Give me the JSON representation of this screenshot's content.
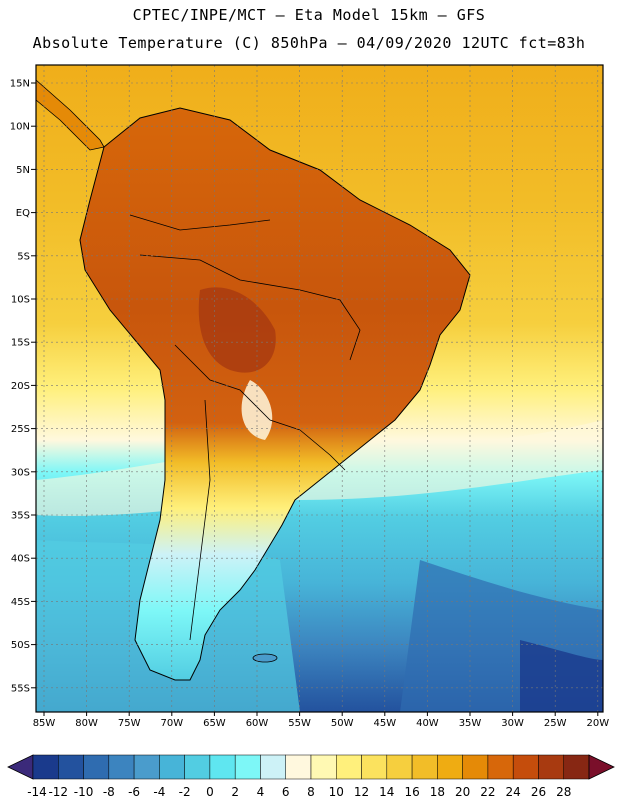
{
  "header": {
    "line1": "CPTEC/INPE/MCT –  Eta Model 15km – GFS",
    "line2": "Absolute Temperature (C) 850hPa – 04/09/2020 12UTC fct=83h"
  },
  "axes": {
    "lat_labels": [
      "15N",
      "10N",
      "5N",
      "EQ",
      "5S",
      "10S",
      "15S",
      "20S",
      "25S",
      "30S",
      "35S",
      "40S",
      "45S",
      "50S",
      "55S"
    ],
    "lon_labels": [
      "85W",
      "80W",
      "75W",
      "70W",
      "65W",
      "60W",
      "55W",
      "50W",
      "45W",
      "40W",
      "35W",
      "30W",
      "25W",
      "20W"
    ]
  },
  "colorbar": {
    "labels": [
      "-14",
      "-12",
      "-10",
      "-8",
      "-6",
      "-4",
      "-2",
      "0",
      "2",
      "4",
      "6",
      "8",
      "10",
      "12",
      "14",
      "16",
      "18",
      "20",
      "22",
      "24",
      "26",
      "28"
    ],
    "colors": [
      "#1a3a8c",
      "#23529e",
      "#2f6cb0",
      "#3c84bf",
      "#4a9ccc",
      "#47b4d8",
      "#52cde2",
      "#5fe6f0",
      "#7df7f7",
      "#cdf2f7",
      "#fff8de",
      "#fff9b3",
      "#fff07c",
      "#fbe25e",
      "#f6cf3e",
      "#f2bd28",
      "#efac12",
      "#e58a07",
      "#d7670a",
      "#c54d0c",
      "#a83a10",
      "#872713"
    ],
    "low_arrow_color": "#3b2a7a",
    "high_arrow_color": "#7a0f2a"
  },
  "map": {
    "ocean_north": "#f0ae1a",
    "ocean_south": "#2e68b0",
    "land_hot": "#c8560c",
    "land_warm": "#e58a07",
    "outline": "#000000"
  }
}
